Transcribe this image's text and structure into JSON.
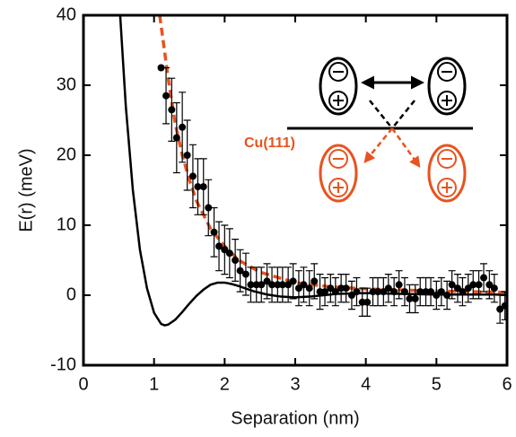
{
  "chart_data": {
    "type": "scatter",
    "xlabel": "Separation (nm)",
    "ylabel": "E(r) (meV)",
    "xlim": [
      0,
      6
    ],
    "ylim": [
      -10,
      40
    ],
    "xticks": [
      0,
      1,
      2,
      3,
      4,
      5,
      6
    ],
    "yticks": [
      -10,
      0,
      10,
      20,
      30,
      40
    ],
    "series": [
      {
        "type": "line",
        "color": "#000000",
        "x": [
          0.52,
          0.6,
          0.7,
          0.8,
          0.9,
          1.0,
          1.1,
          1.15,
          1.2,
          1.3,
          1.4,
          1.5,
          1.6,
          1.7,
          1.8,
          1.9,
          2.0,
          2.1,
          2.2,
          2.4,
          2.6,
          2.8,
          3.0,
          3.2,
          3.4,
          3.6,
          4.0,
          4.5,
          5.0,
          5.5,
          6.0
        ],
        "values": [
          40,
          27,
          15,
          6.5,
          1,
          -2.5,
          -4.1,
          -4.3,
          -4.2,
          -3.5,
          -2.4,
          -1.2,
          -0.1,
          0.8,
          1.5,
          1.8,
          1.8,
          1.6,
          1.3,
          0.6,
          0.1,
          -0.2,
          -0.3,
          -0.2,
          0,
          0.2,
          0.3,
          0.2,
          0.1,
          0.1,
          0.1
        ]
      },
      {
        "type": "line",
        "dashed": true,
        "color": "#e8531f",
        "x": [
          1.08,
          1.2,
          1.3,
          1.4,
          1.5,
          1.6,
          1.8,
          2.0,
          2.2,
          2.5,
          3.0,
          3.5,
          4.0,
          5.0,
          6.0
        ],
        "values": [
          40,
          31,
          24.5,
          20,
          16.5,
          13.5,
          9.5,
          7,
          5,
          3.3,
          1.8,
          1.2,
          0.9,
          0.6,
          0.4
        ]
      },
      {
        "type": "scatter",
        "color": "#000000",
        "x": [
          1.1,
          1.17,
          1.25,
          1.32,
          1.4,
          1.47,
          1.55,
          1.62,
          1.7,
          1.77,
          1.85,
          1.92,
          2.0,
          2.07,
          2.15,
          2.22,
          2.3,
          2.37,
          2.45,
          2.52,
          2.6,
          2.67,
          2.75,
          2.82,
          2.9,
          2.97,
          3.05,
          3.12,
          3.2,
          3.27,
          3.35,
          3.42,
          3.5,
          3.57,
          3.65,
          3.72,
          3.8,
          3.87,
          3.95,
          4.02,
          4.1,
          4.17,
          4.25,
          4.32,
          4.4,
          4.47,
          4.55,
          4.62,
          4.7,
          4.77,
          4.85,
          4.92,
          5.0,
          5.07,
          5.15,
          5.22,
          5.3,
          5.37,
          5.45,
          5.52,
          5.6,
          5.67,
          5.75,
          5.82,
          5.9,
          5.97
        ],
        "values": [
          32.5,
          28.5,
          26.5,
          22.5,
          24,
          20,
          17,
          15.5,
          15.5,
          12.5,
          9,
          7,
          6.5,
          6,
          5,
          3.5,
          3,
          1.5,
          1.5,
          1.5,
          2,
          1.5,
          1.5,
          1.5,
          1.5,
          2,
          1,
          1.5,
          1,
          2,
          0.5,
          0.5,
          1,
          0.5,
          1,
          1,
          0,
          0.5,
          -1,
          -1,
          0.5,
          0.5,
          0.5,
          1,
          0.5,
          1.5,
          0.5,
          -0.5,
          -0.5,
          0.5,
          0.5,
          0.5,
          0,
          0.5,
          0,
          1.5,
          1,
          0.5,
          1,
          1.5,
          1.5,
          2.5,
          1.5,
          1,
          -2,
          -1.5
        ],
        "errors": [
          0,
          4,
          4.5,
          5,
          5,
          5,
          4.5,
          4,
          4,
          4,
          3.5,
          3.5,
          3.5,
          3.5,
          3,
          3,
          3,
          2.5,
          2.5,
          2.5,
          2.5,
          2.5,
          2.5,
          2.5,
          2.5,
          2.5,
          2.5,
          2.5,
          2.5,
          2.5,
          2.5,
          2,
          2,
          2,
          2,
          2,
          2,
          2,
          2,
          2,
          2,
          2,
          2,
          2,
          2,
          2,
          2,
          2,
          2,
          2,
          2,
          2,
          2,
          2,
          2,
          2,
          2,
          2,
          2,
          2,
          2,
          2,
          2,
          2,
          2,
          2
        ]
      }
    ],
    "annotations": [
      {
        "text": "Cu(111)",
        "color": "#e8531f"
      }
    ]
  }
}
